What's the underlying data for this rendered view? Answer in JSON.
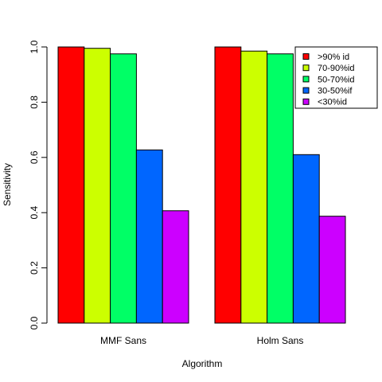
{
  "chart_data": {
    "type": "bar",
    "title": "",
    "xlabel": "Algorithm",
    "ylabel": "Sensitivity",
    "categories": [
      "MMF Sans",
      "Holm Sans"
    ],
    "series": [
      {
        "name": ">90% id",
        "color": "#FF0000",
        "values": [
          1.0,
          1.0
        ]
      },
      {
        "name": "70-90%id",
        "color": "#CCFF00",
        "values": [
          0.995,
          0.985
        ]
      },
      {
        "name": "50-70%id",
        "color": "#00FF66",
        "values": [
          0.975,
          0.975
        ]
      },
      {
        "name": "30-50%if",
        "color": "#0066FF",
        "values": [
          0.627,
          0.61
        ]
      },
      {
        "name": "<30%id",
        "color": "#CC00FF",
        "values": [
          0.407,
          0.387
        ]
      }
    ],
    "ylim": [
      0,
      1.0
    ],
    "yticks": [
      "0.0",
      "0.2",
      "0.4",
      "0.6",
      "0.8",
      "1.0"
    ],
    "legend_position": "top-right",
    "grid": false
  }
}
